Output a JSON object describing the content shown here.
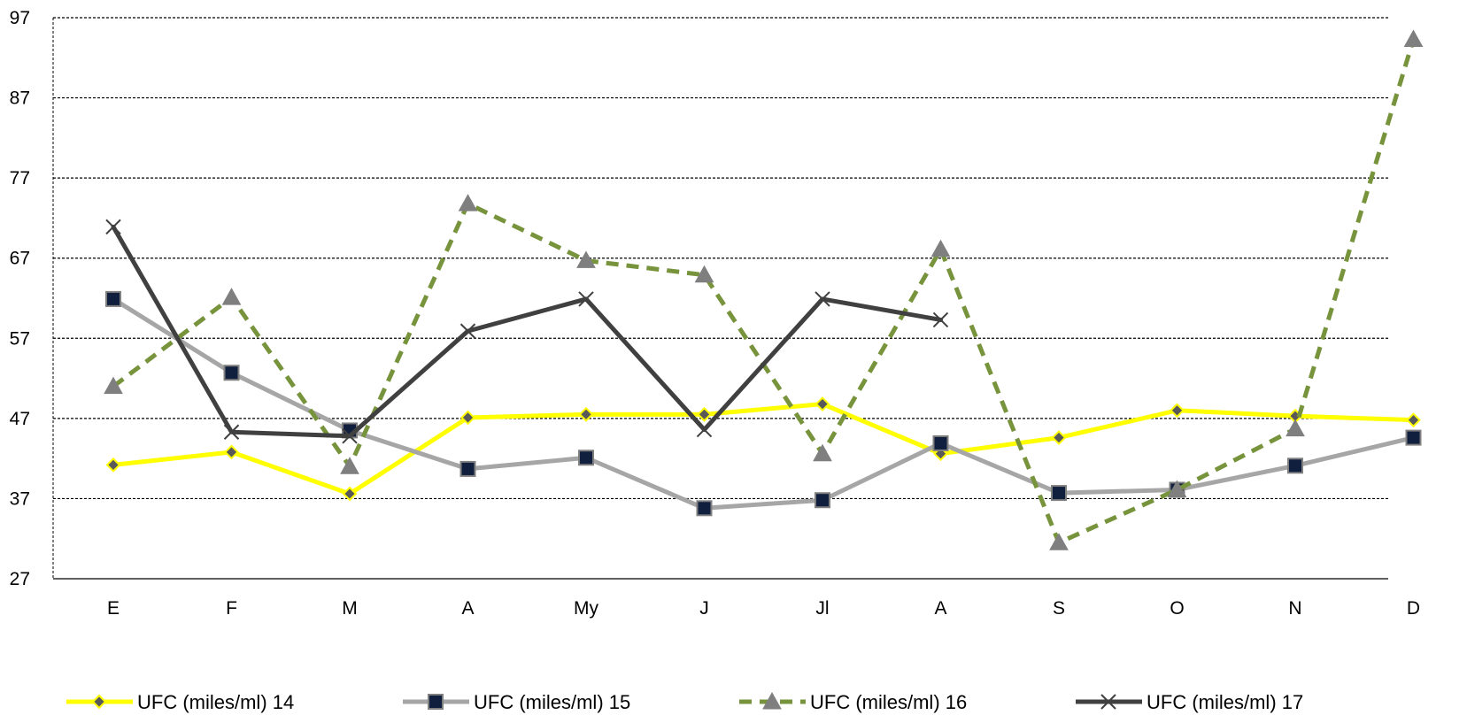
{
  "chart_data": {
    "type": "line",
    "categories": [
      "E",
      "F",
      "M",
      "A",
      "My",
      "J",
      "Jl",
      "A",
      "S",
      "O",
      "N",
      "D"
    ],
    "ylim": [
      27,
      97
    ],
    "yticks": [
      "97",
      "87",
      "77",
      "67",
      "57",
      "47",
      "37",
      "27"
    ],
    "grid": true,
    "legend_position": "bottom",
    "series": [
      {
        "name": "UFC (miles/ml) 14",
        "color": "#FFFF00",
        "marker": "diamond",
        "dashed": false,
        "values": [
          41.2,
          42.8,
          37.6,
          47.1,
          47.5,
          47.5,
          48.8,
          42.6,
          44.6,
          48.0,
          47.3,
          46.8
        ]
      },
      {
        "name": "UFC (miles/ml) 15",
        "color": "#A6A6A6",
        "marker": "square",
        "dashed": false,
        "values": [
          61.9,
          52.7,
          45.5,
          40.7,
          42.1,
          35.8,
          36.8,
          43.9,
          37.7,
          38.1,
          41.1,
          44.6
        ]
      },
      {
        "name": "UFC (miles/ml) 16",
        "color": "#77933C",
        "marker": "triangle",
        "dashed": true,
        "values": [
          51.0,
          62.1,
          41.0,
          73.8,
          66.7,
          64.9,
          42.6,
          68.1,
          31.5,
          38.1,
          45.7,
          94.3
        ]
      },
      {
        "name": "UFC (miles/ml) 17",
        "color": "#404040",
        "marker": "x",
        "dashed": false,
        "values": [
          70.9,
          45.3,
          44.8,
          57.9,
          61.9,
          45.6,
          61.9,
          59.3,
          null,
          null,
          null,
          null
        ]
      }
    ]
  }
}
